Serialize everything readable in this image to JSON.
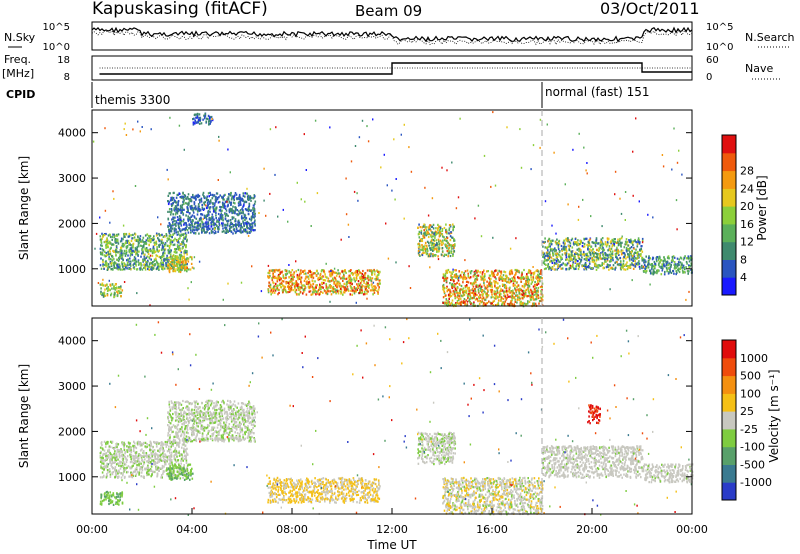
{
  "header": {
    "station": "Kapuskasing (fitACF)",
    "beam": "Beam 09",
    "date": "03/Oct/2011"
  },
  "nsky_panel": {
    "left_label": "N.Sky",
    "right_label": "N.Search",
    "left_ticks": [
      "10^5",
      "10^0"
    ],
    "right_ticks": [
      "10^5",
      "10^0"
    ]
  },
  "freq_panel": {
    "left_label": "Freq.",
    "left_unit": "[MHz]",
    "right_label": "Nave",
    "left_ticks": [
      "18",
      "8"
    ],
    "right_ticks": [
      "60",
      "0"
    ],
    "cpid_label": "CPID",
    "cpid_modes": [
      {
        "label": "themis 3300",
        "start_hour": 0.3
      },
      {
        "label": "normal (fast) 151",
        "start_hour": 18.0
      }
    ]
  },
  "chart_data": [
    {
      "type": "heatmap",
      "panel": "power",
      "ylabel": "Slant Range [km]",
      "xlabel": "",
      "yticks": [
        1000,
        2000,
        3000,
        4000
      ],
      "ylim": [
        180,
        4500
      ],
      "xlim": [
        0,
        24
      ],
      "colorbar": {
        "label": "Power [dB]",
        "ticks": [
          "4",
          "8",
          "12",
          "16",
          "20",
          "24",
          "28"
        ],
        "colors": [
          "#1a1aff",
          "#2a55c0",
          "#3f8a6e",
          "#5bb05a",
          "#8ccf3a",
          "#e6c81e",
          "#f49a10",
          "#ef5a0c",
          "#e01010"
        ]
      },
      "regions": [
        {
          "t": [
            0.3,
            3.8
          ],
          "r": [
            1000,
            1800
          ],
          "c": [
            0.15,
            0.6
          ]
        },
        {
          "t": [
            3.0,
            6.5
          ],
          "r": [
            1800,
            2700
          ],
          "c": [
            0.1,
            0.35
          ]
        },
        {
          "t": [
            0.3,
            1.2
          ],
          "r": [
            400,
            700
          ],
          "c": [
            0.3,
            0.7
          ]
        },
        {
          "t": [
            3.0,
            4.0
          ],
          "r": [
            950,
            1300
          ],
          "c": [
            0.4,
            0.8
          ]
        },
        {
          "t": [
            7.0,
            11.5
          ],
          "r": [
            450,
            1000
          ],
          "c": [
            0.4,
            0.95
          ]
        },
        {
          "t": [
            13.0,
            14.5
          ],
          "r": [
            1300,
            2000
          ],
          "c": [
            0.2,
            0.8
          ]
        },
        {
          "t": [
            14.0,
            18.0
          ],
          "r": [
            200,
            1000
          ],
          "c": [
            0.35,
            0.95
          ]
        },
        {
          "t": [
            18.0,
            22.0
          ],
          "r": [
            1000,
            1700
          ],
          "c": [
            0.1,
            0.7
          ]
        },
        {
          "t": [
            22.0,
            24.0
          ],
          "r": [
            900,
            1300
          ],
          "c": [
            0.15,
            0.5
          ]
        },
        {
          "t": [
            4.0,
            4.8
          ],
          "r": [
            4200,
            4450
          ],
          "c": [
            0.05,
            0.3
          ]
        }
      ]
    },
    {
      "type": "heatmap",
      "panel": "velocity",
      "ylabel": "Slant Range [km]",
      "xlabel": "Time UT",
      "xticks": [
        "00:00",
        "04:00",
        "08:00",
        "12:00",
        "16:00",
        "20:00",
        "00:00"
      ],
      "yticks": [
        1000,
        2000,
        3000,
        4000
      ],
      "ylim": [
        180,
        4500
      ],
      "xlim": [
        0,
        24
      ],
      "colorbar": {
        "label": "Velocity [m s⁻¹]",
        "ticks": [
          "1000",
          "500",
          "100",
          "25",
          "-25",
          "-100",
          "-500",
          "-1000"
        ],
        "colors": [
          "#2a3cc8",
          "#3a7a90",
          "#58a06a",
          "#7ecc40",
          "#c8c8c0",
          "#f5c016",
          "#f49010",
          "#ef4c0c",
          "#e00c0c"
        ]
      },
      "regions": [
        {
          "t": [
            0.3,
            3.8
          ],
          "r": [
            1000,
            1800
          ],
          "c": [
            0.42,
            0.5
          ]
        },
        {
          "t": [
            3.0,
            6.5
          ],
          "r": [
            1800,
            2700
          ],
          "c": [
            0.42,
            0.5
          ]
        },
        {
          "t": [
            0.3,
            1.2
          ],
          "r": [
            400,
            700
          ],
          "c": [
            0.3,
            0.4
          ]
        },
        {
          "t": [
            3.0,
            4.0
          ],
          "r": [
            950,
            1300
          ],
          "c": [
            0.3,
            0.4
          ]
        },
        {
          "t": [
            7.0,
            11.5
          ],
          "r": [
            450,
            1000
          ],
          "c": [
            0.5,
            0.65
          ]
        },
        {
          "t": [
            13.0,
            14.5
          ],
          "r": [
            1300,
            2000
          ],
          "c": [
            0.42,
            0.5
          ]
        },
        {
          "t": [
            14.0,
            18.0
          ],
          "r": [
            200,
            1000
          ],
          "c": [
            0.42,
            0.6
          ]
        },
        {
          "t": [
            18.0,
            22.0
          ],
          "r": [
            1000,
            1700
          ],
          "c": [
            0.44,
            0.5
          ]
        },
        {
          "t": [
            22.0,
            24.0
          ],
          "r": [
            900,
            1300
          ],
          "c": [
            0.44,
            0.5
          ]
        },
        {
          "t": [
            19.8,
            20.3
          ],
          "r": [
            2200,
            2600
          ],
          "c": [
            0.85,
            0.95
          ]
        }
      ]
    }
  ]
}
